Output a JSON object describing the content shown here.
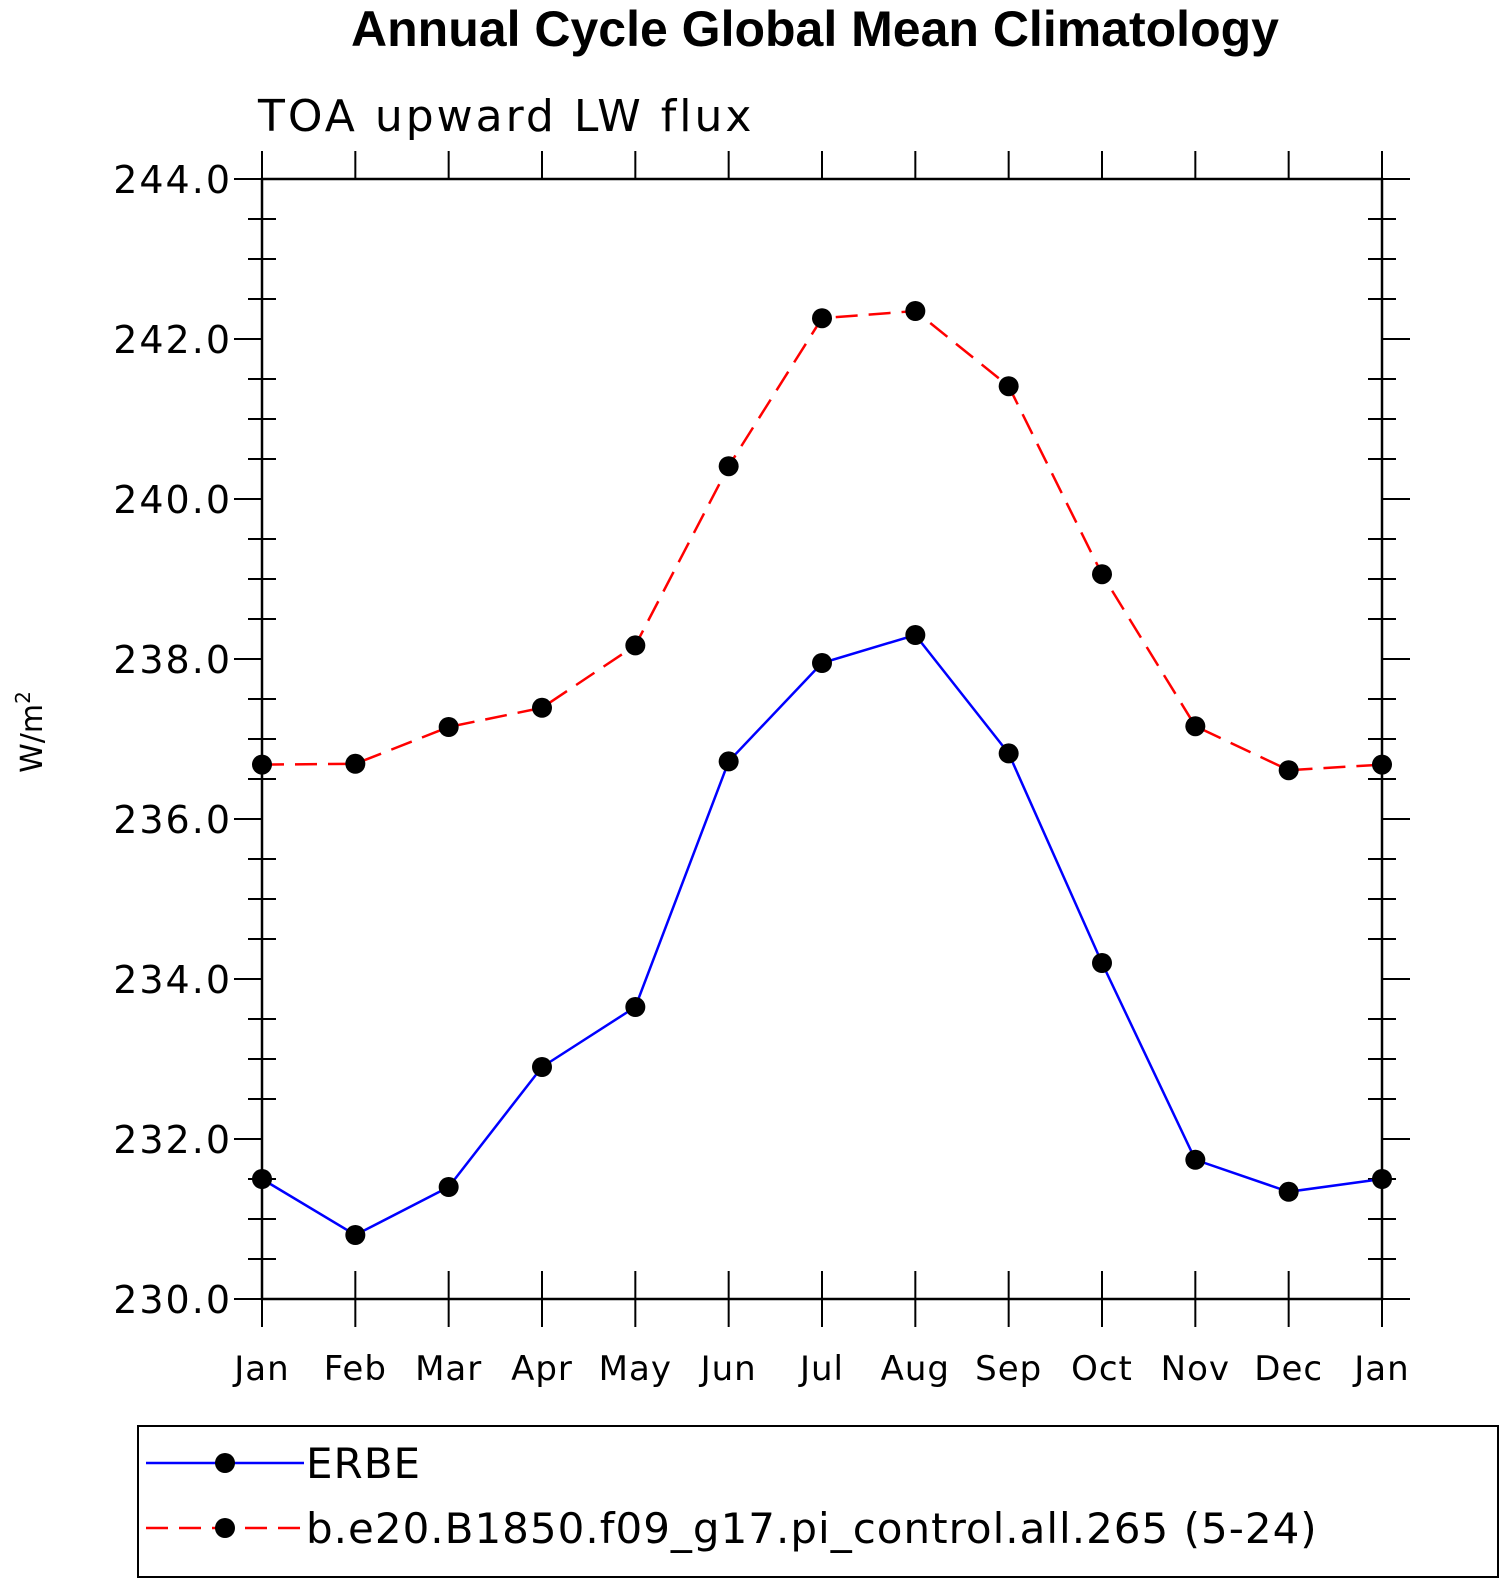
{
  "chart_data": {
    "type": "line",
    "title": "Annual Cycle Global Mean Climatology",
    "subtitle": "TOA upward LW flux",
    "xlabel": "",
    "ylabel": "W/m",
    "ylabel_superscript": "2",
    "categories": [
      "Jan",
      "Feb",
      "Mar",
      "Apr",
      "May",
      "Jun",
      "Jul",
      "Aug",
      "Sep",
      "Oct",
      "Nov",
      "Dec",
      "Jan"
    ],
    "ylim": [
      230.0,
      244.0
    ],
    "yticks": [
      "230.0",
      "232.0",
      "234.0",
      "236.0",
      "238.0",
      "240.0",
      "242.0",
      "244.0"
    ],
    "grid": false,
    "legend_position": "bottom",
    "series": [
      {
        "name": "ERBE",
        "color": "#0000ff",
        "line_style": "solid",
        "marker": "filled-circle",
        "values": [
          231.5,
          230.8,
          231.4,
          232.9,
          233.65,
          236.72,
          237.95,
          238.3,
          236.82,
          234.2,
          231.74,
          231.34,
          231.5
        ]
      },
      {
        "name": "b.e20.B1850.f09_g17.pi_control.all.265 (5-24)",
        "color": "#ff0000",
        "line_style": "dashed",
        "marker": "filled-circle",
        "values": [
          236.68,
          236.69,
          237.15,
          237.39,
          238.17,
          240.41,
          242.26,
          242.35,
          241.41,
          239.06,
          237.16,
          236.61,
          236.68
        ]
      }
    ]
  }
}
